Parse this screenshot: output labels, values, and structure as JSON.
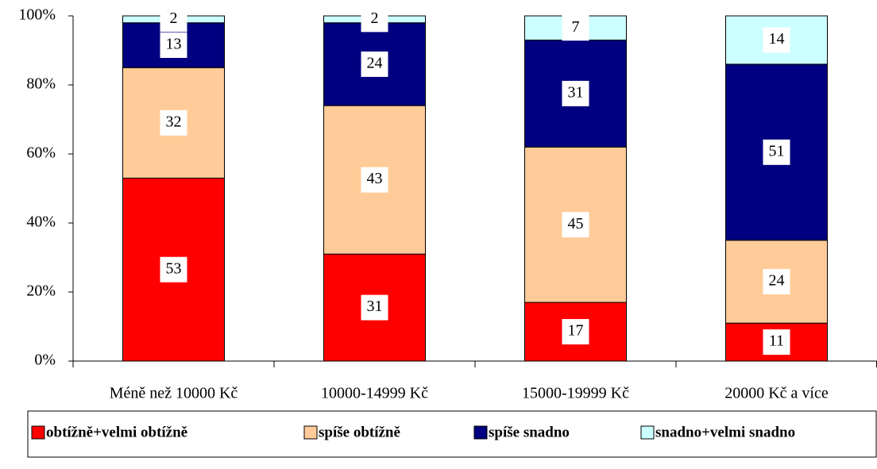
{
  "chart_data": {
    "type": "stacked_bar_100",
    "categories": [
      "Méně než 10000 Kč",
      "10000-14999 Kč",
      "15000-19999 Kč",
      "20000 Kč a více"
    ],
    "series": [
      {
        "name": "obtížně+velmi obtížně",
        "color": "#ff0000",
        "values": [
          53,
          31,
          17,
          11
        ]
      },
      {
        "name": "spíše obtížně",
        "color": "#ffcc99",
        "values": [
          32,
          43,
          45,
          24
        ]
      },
      {
        "name": "spíše snadno",
        "color": "#000080",
        "values": [
          13,
          24,
          31,
          51
        ]
      },
      {
        "name": "snadno+velmi snadno",
        "color": "#ccffff",
        "values": [
          2,
          2,
          7,
          14
        ]
      }
    ],
    "ylim": [
      0,
      100
    ],
    "yticks": [
      {
        "value": 0,
        "label": "0%"
      },
      {
        "value": 20,
        "label": "20%"
      },
      {
        "value": 40,
        "label": "40%"
      },
      {
        "value": 60,
        "label": "60%"
      },
      {
        "value": 80,
        "label": "80%"
      },
      {
        "value": 100,
        "label": "100%"
      }
    ],
    "legend": "bottom"
  }
}
